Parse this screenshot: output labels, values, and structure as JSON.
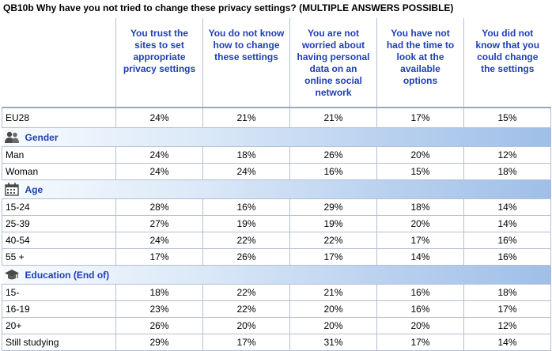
{
  "title": "QB10b Why have you not tried to change these privacy settings? (MULTIPLE ANSWERS POSSIBLE)",
  "columns": [
    "You trust the sites to set appropriate privacy settings",
    "You do not know how to change these settings",
    "You are not worried about having personal data on an online social network",
    "You have not had the time to look at the available options",
    "You did not know that you could change the settings"
  ],
  "eu_row": {
    "label": "EU28",
    "values": [
      "24%",
      "21%",
      "21%",
      "17%",
      "15%"
    ]
  },
  "sections": [
    {
      "name": "Gender",
      "icon": "people-icon",
      "rows": [
        {
          "label": "Man",
          "values": [
            "24%",
            "18%",
            "26%",
            "20%",
            "12%"
          ]
        },
        {
          "label": "Woman",
          "values": [
            "24%",
            "24%",
            "16%",
            "15%",
            "18%"
          ]
        }
      ]
    },
    {
      "name": "Age",
      "icon": "calendar-icon",
      "rows": [
        {
          "label": "15-24",
          "values": [
            "28%",
            "16%",
            "29%",
            "18%",
            "14%"
          ]
        },
        {
          "label": "25-39",
          "values": [
            "27%",
            "19%",
            "19%",
            "20%",
            "14%"
          ]
        },
        {
          "label": "40-54",
          "values": [
            "24%",
            "22%",
            "22%",
            "17%",
            "16%"
          ]
        },
        {
          "label": "55 +",
          "values": [
            "17%",
            "26%",
            "17%",
            "14%",
            "16%"
          ]
        }
      ]
    },
    {
      "name": "Education (End of)",
      "icon": "graduation-cap-icon",
      "rows": [
        {
          "label": "15-",
          "values": [
            "18%",
            "22%",
            "21%",
            "16%",
            "18%"
          ]
        },
        {
          "label": "16-19",
          "values": [
            "23%",
            "22%",
            "20%",
            "16%",
            "17%"
          ]
        },
        {
          "label": "20+",
          "values": [
            "26%",
            "20%",
            "20%",
            "20%",
            "12%"
          ]
        },
        {
          "label": "Still studying",
          "values": [
            "29%",
            "17%",
            "31%",
            "17%",
            "14%"
          ]
        }
      ]
    }
  ],
  "colors": {
    "header_text": "#1f3fb4",
    "section_band_end": "#9fbfe8",
    "grid": "#b4bfd1"
  },
  "chart_data": {
    "type": "table",
    "title": "QB10b Why have you not tried to change these privacy settings? (MULTIPLE ANSWERS POSSIBLE)",
    "columns": [
      "You trust the sites to set appropriate privacy settings",
      "You do not know how to change these settings",
      "You are not worried about having personal data on an online social network",
      "You have not had the time to look at the available options",
      "You did not know that you could change the settings"
    ],
    "rows": [
      {
        "group": "",
        "label": "EU28",
        "values": [
          24,
          21,
          21,
          17,
          15
        ]
      },
      {
        "group": "Gender",
        "label": "Man",
        "values": [
          24,
          18,
          26,
          20,
          12
        ]
      },
      {
        "group": "Gender",
        "label": "Woman",
        "values": [
          24,
          24,
          16,
          15,
          18
        ]
      },
      {
        "group": "Age",
        "label": "15-24",
        "values": [
          28,
          16,
          29,
          18,
          14
        ]
      },
      {
        "group": "Age",
        "label": "25-39",
        "values": [
          27,
          19,
          19,
          20,
          14
        ]
      },
      {
        "group": "Age",
        "label": "40-54",
        "values": [
          24,
          22,
          22,
          17,
          16
        ]
      },
      {
        "group": "Age",
        "label": "55 +",
        "values": [
          17,
          26,
          17,
          14,
          16
        ]
      },
      {
        "group": "Education (End of)",
        "label": "15-",
        "values": [
          18,
          22,
          21,
          16,
          18
        ]
      },
      {
        "group": "Education (End of)",
        "label": "16-19",
        "values": [
          23,
          22,
          20,
          16,
          17
        ]
      },
      {
        "group": "Education (End of)",
        "label": "20+",
        "values": [
          26,
          20,
          20,
          20,
          12
        ]
      },
      {
        "group": "Education (End of)",
        "label": "Still studying",
        "values": [
          29,
          17,
          31,
          17,
          14
        ]
      }
    ],
    "unit": "%"
  }
}
